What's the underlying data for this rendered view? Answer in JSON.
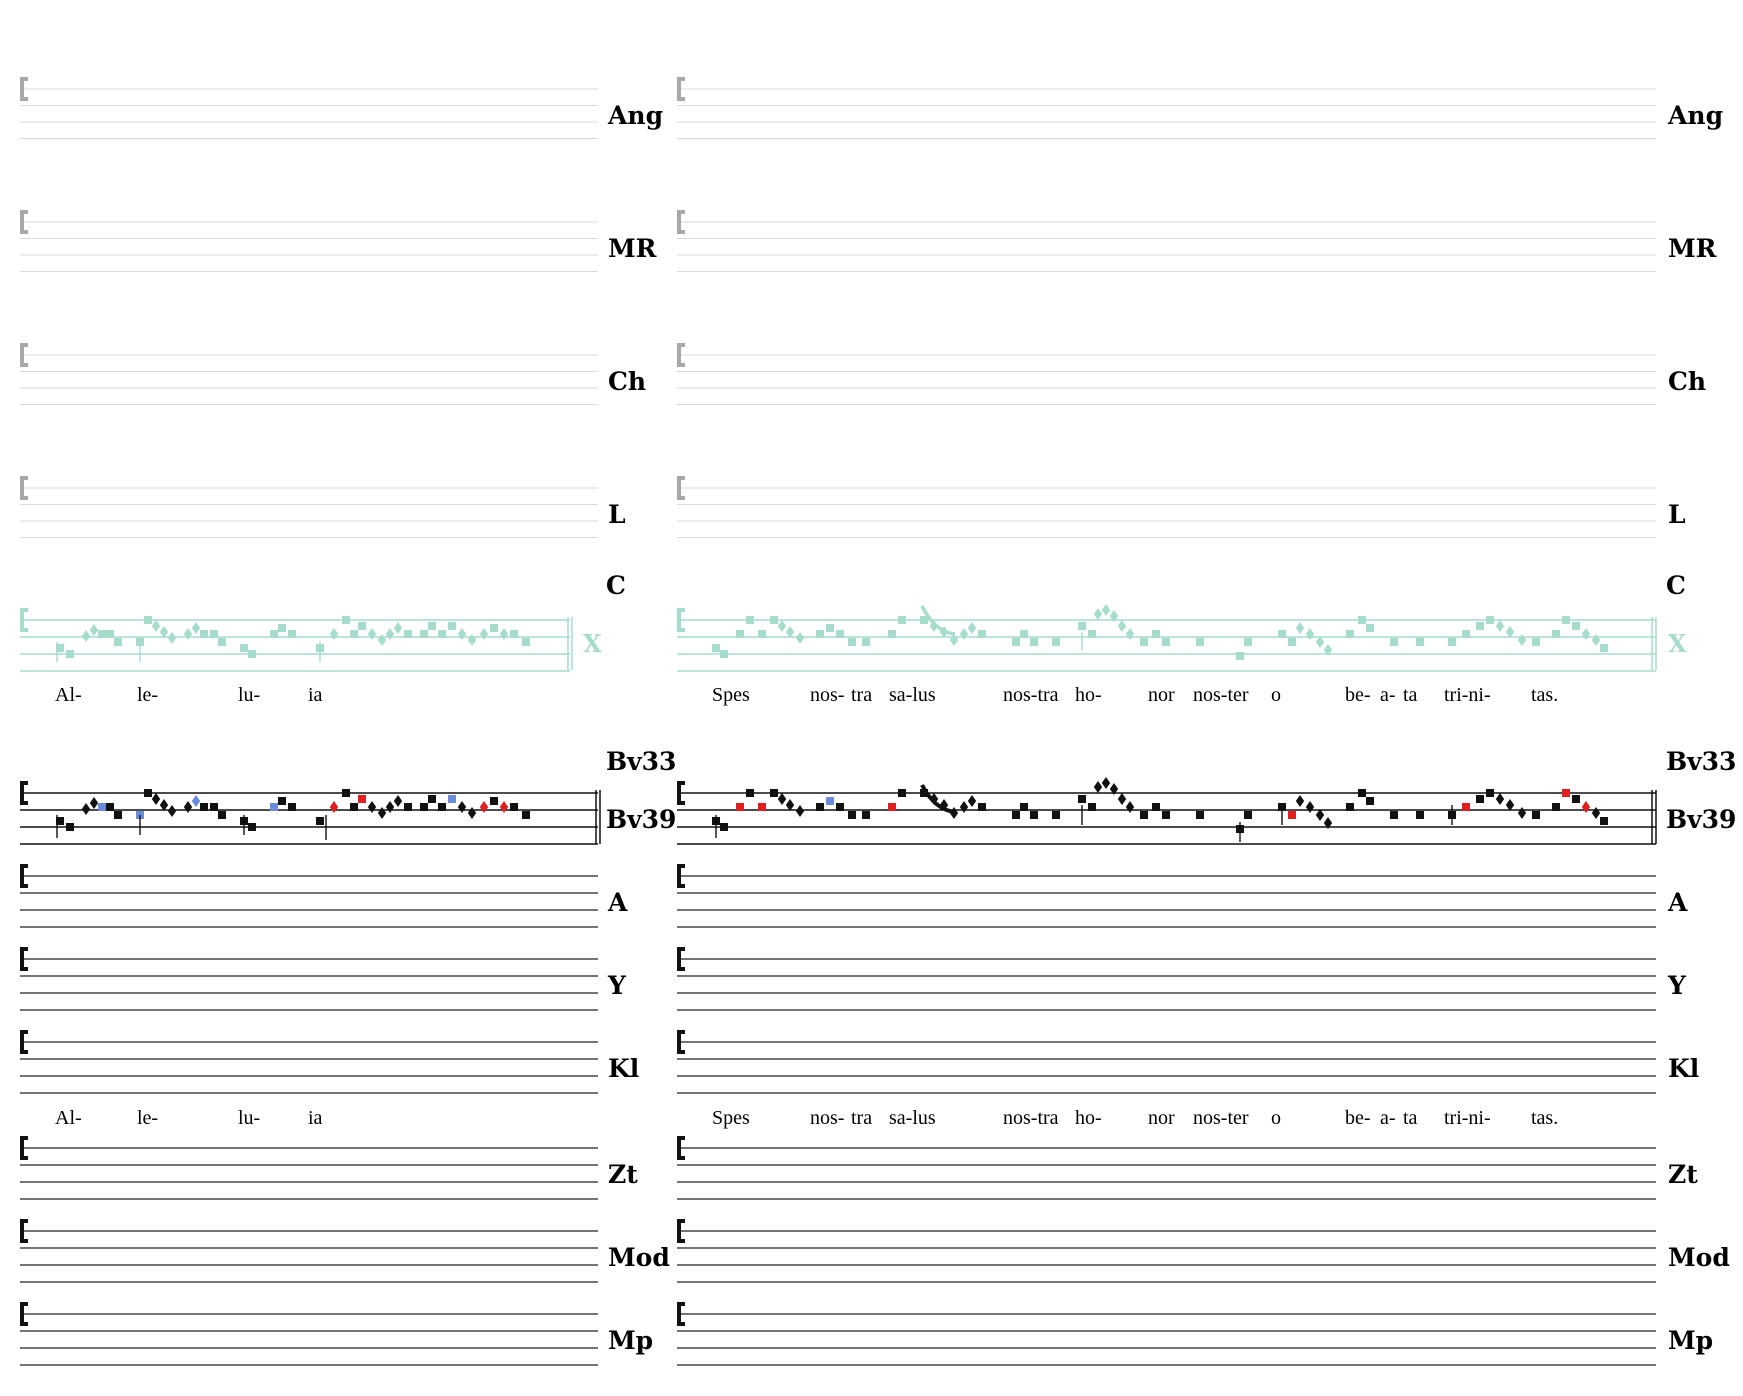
{
  "colors": {
    "grey_line": "#d9d9d9",
    "grey_clef": "#a8a8a8",
    "ref_color": "#a6dccb",
    "black": "#111111",
    "blue_variant": "#6b8bdc",
    "red_variant": "#e02020"
  },
  "staff_labels": {
    "grey": [
      "Ang",
      "MR",
      "Ch",
      "L"
    ],
    "reference": "C",
    "reference_mark": "X",
    "main_top": "Bv33",
    "main_bottom": "Bv39",
    "black_group1": [
      "A",
      "Y",
      "Kl"
    ],
    "black_group2": [
      "Zt",
      "Mod",
      "Mp"
    ]
  },
  "lyrics": {
    "left": [
      "Al-",
      "le-",
      "lu-",
      "ia"
    ],
    "right": [
      "Spes",
      "nos-",
      "tra",
      "sa-lus",
      "nos-tra",
      "ho-",
      "nor",
      "nos-ter",
      "o",
      "be-",
      "a-",
      "ta",
      "tri-ni-",
      "tas."
    ]
  },
  "icons": {
    "clef": "c-clef-icon",
    "square_note": "punctum-icon",
    "diamond_note": "rhombus-icon"
  }
}
